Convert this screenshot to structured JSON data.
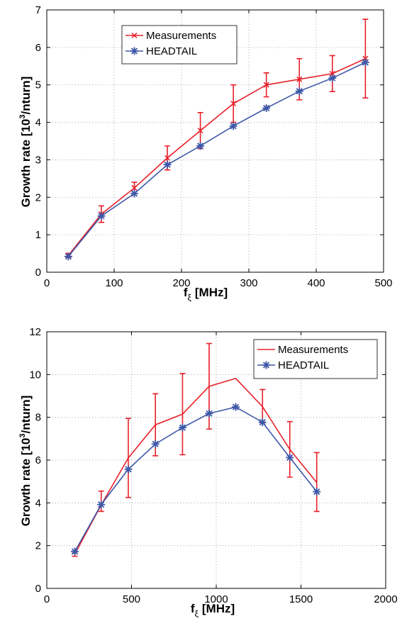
{
  "chart_data": [
    {
      "type": "line",
      "xlabel_main": "f",
      "xlabel_sub": "ξ",
      "xlabel_unit": "[MHz]",
      "ylabel_pre": "Growth rate [10",
      "ylabel_sup": "3",
      "ylabel_post": "/nturn]",
      "xlim": [
        0,
        500
      ],
      "ylim": [
        0,
        7
      ],
      "xticks": [
        0,
        100,
        200,
        300,
        400,
        500
      ],
      "yticks": [
        0,
        1,
        2,
        3,
        4,
        5,
        6,
        7
      ],
      "grid": true,
      "legend_position": "top-left",
      "series": [
        {
          "name": "Measurements",
          "color": "#e8202a",
          "marker": "x",
          "x": [
            32,
            81,
            130,
            179,
            228,
            277,
            326,
            375,
            424,
            473
          ],
          "y": [
            0.45,
            1.55,
            2.25,
            3.05,
            3.78,
            4.5,
            5.0,
            5.15,
            5.3,
            5.7
          ],
          "err_low": [
            0.05,
            0.22,
            0.15,
            0.32,
            0.48,
            0.5,
            0.32,
            0.55,
            0.48,
            1.05
          ],
          "err_high": [
            0.05,
            0.22,
            0.15,
            0.32,
            0.48,
            0.5,
            0.32,
            0.55,
            0.48,
            1.05
          ]
        },
        {
          "name": "HEADTAIL",
          "color": "#3e58a8",
          "marker": "*",
          "x": [
            32,
            81,
            130,
            179,
            228,
            277,
            326,
            375,
            424,
            473
          ],
          "y": [
            0.42,
            1.5,
            2.1,
            2.87,
            3.37,
            3.9,
            4.38,
            4.83,
            5.18,
            5.6
          ]
        }
      ]
    },
    {
      "type": "line",
      "xlabel_main": "f",
      "xlabel_sub": "ξ",
      "xlabel_unit": "[MHz]",
      "ylabel_pre": "Growth rate [10",
      "ylabel_sup": "3",
      "ylabel_post": "/nturn]",
      "xlim": [
        0,
        2000
      ],
      "ylim": [
        0,
        12
      ],
      "xticks": [
        0,
        500,
        1000,
        1500,
        2000
      ],
      "yticks": [
        0,
        2,
        4,
        6,
        8,
        10,
        12
      ],
      "grid": true,
      "legend_position": "top-right",
      "series": [
        {
          "name": "Measurements",
          "color": "#e8202a",
          "marker": "none",
          "x": [
            165,
            321,
            481,
            641,
            801,
            958,
            1115,
            1273,
            1434,
            1593
          ],
          "y": [
            1.6,
            3.9,
            6.1,
            7.65,
            8.15,
            9.45,
            9.82,
            8.5,
            6.5,
            4.95
          ],
          "err_low": [
            0.1,
            0.3,
            1.85,
            1.45,
            1.9,
            2.0,
            0.0,
            0.75,
            1.3,
            1.35
          ],
          "err_high": [
            0.1,
            0.65,
            1.85,
            1.45,
            1.9,
            2.0,
            0.0,
            0.8,
            1.3,
            1.4
          ]
        },
        {
          "name": "HEADTAIL",
          "color": "#3e58a8",
          "marker": "*",
          "x": [
            165,
            321,
            481,
            641,
            801,
            958,
            1115,
            1273,
            1434,
            1593
          ],
          "y": [
            1.72,
            3.92,
            5.57,
            6.75,
            7.52,
            8.18,
            8.48,
            7.77,
            6.12,
            4.52
          ]
        }
      ]
    }
  ]
}
